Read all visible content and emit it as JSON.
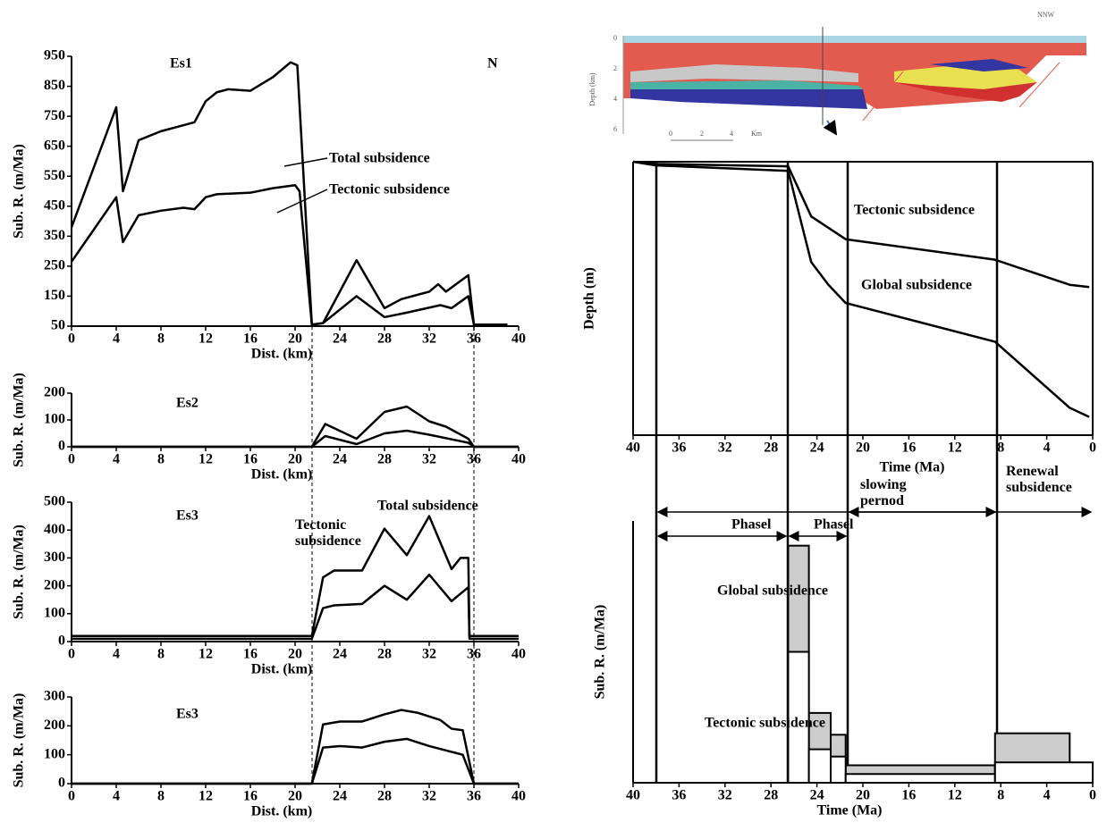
{
  "cross_section": {
    "direction": "NNW",
    "y_label": "Depth (km)",
    "depth_ticks": [
      0,
      2,
      4,
      6
    ],
    "scale_ticks": [
      0,
      2,
      4
    ],
    "scale_unit": "Km"
  },
  "chart_data": [
    {
      "type": "line",
      "annotations": [
        "Es1",
        "N"
      ],
      "x_label": "Dist. (km)",
      "y_label": "Sub. R. (m/Ma)",
      "xlim": [
        0,
        40
      ],
      "xticks": [
        0,
        4,
        8,
        12,
        16,
        20,
        24,
        28,
        32,
        36,
        40
      ],
      "ylim": [
        50,
        950
      ],
      "yticks": [
        50,
        150,
        250,
        350,
        450,
        550,
        650,
        750,
        850,
        950
      ],
      "series": [
        {
          "name": "Total subsidence",
          "color": "#000000",
          "x": [
            0,
            4,
            4.6,
            6,
            8,
            10,
            11,
            12,
            13,
            14,
            16,
            18,
            19.6,
            20.2,
            21.5,
            22.5,
            25.5,
            28,
            29.5,
            31,
            32,
            32.8,
            33.5,
            35.5,
            36,
            39
          ],
          "values": [
            380,
            780,
            500,
            670,
            700,
            720,
            730,
            800,
            830,
            840,
            835,
            880,
            930,
            920,
            55,
            60,
            270,
            110,
            140,
            155,
            165,
            190,
            165,
            220,
            55,
            55
          ]
        },
        {
          "name": "Tectonic subsidence",
          "color": "#000000",
          "x": [
            0,
            4,
            4.6,
            6,
            8,
            10,
            11,
            12,
            13,
            16,
            18,
            20,
            20.4,
            21.5,
            22.5,
            25.5,
            28,
            30,
            33,
            34,
            35.5,
            36,
            39
          ],
          "values": [
            265,
            480,
            330,
            420,
            435,
            445,
            440,
            480,
            490,
            495,
            510,
            520,
            500,
            55,
            60,
            150,
            80,
            95,
            120,
            110,
            150,
            55,
            55
          ]
        }
      ]
    },
    {
      "type": "line",
      "annotations": [
        "Es2"
      ],
      "x_label": "Dist. (km)",
      "y_label": "Sub. R. (m/Ma)",
      "xlim": [
        0,
        40
      ],
      "xticks": [
        0,
        4,
        8,
        12,
        16,
        20,
        24,
        28,
        32,
        36,
        40
      ],
      "ylim": [
        0,
        200
      ],
      "yticks": [
        0,
        100,
        200
      ],
      "series": [
        {
          "color": "#000000",
          "x": [
            0,
            21.5,
            22.7,
            25.5,
            28,
            30,
            32,
            33.5,
            35.5,
            36,
            40
          ],
          "values": [
            0,
            0,
            85,
            30,
            130,
            150,
            95,
            75,
            30,
            0,
            0
          ]
        },
        {
          "color": "#000000",
          "x": [
            0,
            21.5,
            22.7,
            25.5,
            28,
            30,
            32,
            35.5,
            36,
            40
          ],
          "values": [
            0,
            0,
            40,
            10,
            50,
            60,
            45,
            15,
            0,
            0
          ]
        }
      ]
    },
    {
      "type": "line",
      "annotations": [
        "Es3"
      ],
      "x_label": "Dist. (km)",
      "y_label": "Sub. R. (m/Ma)",
      "xlim": [
        0,
        40
      ],
      "xticks": [
        0,
        4,
        8,
        12,
        16,
        20,
        24,
        28,
        32,
        36,
        40
      ],
      "ylim": [
        0,
        500
      ],
      "yticks": [
        0,
        100,
        200,
        300,
        400,
        500
      ],
      "series": [
        {
          "name": "Total subsidence",
          "color": "#000000",
          "x": [
            0,
            21.5,
            22.5,
            23.5,
            26,
            28,
            30,
            32,
            34,
            34.8,
            35.5,
            35.6,
            40
          ],
          "values": [
            20,
            20,
            230,
            255,
            255,
            405,
            310,
            450,
            260,
            300,
            300,
            20,
            20
          ]
        },
        {
          "name": "Tectonic subsidence",
          "color": "#000000",
          "x": [
            0,
            21.5,
            22.5,
            23.5,
            26,
            28,
            30,
            32,
            34,
            35.5,
            35.6,
            40
          ],
          "values": [
            10,
            10,
            120,
            130,
            135,
            200,
            150,
            240,
            145,
            195,
            10,
            10
          ]
        }
      ]
    },
    {
      "type": "line",
      "annotations": [
        "Es3"
      ],
      "x_label": "Dist. (km)",
      "y_label": "Sub. R. (m/Ma)",
      "xlim": [
        0,
        40
      ],
      "xticks": [
        0,
        4,
        8,
        12,
        16,
        20,
        24,
        28,
        32,
        36,
        40
      ],
      "ylim": [
        0,
        300
      ],
      "yticks": [
        0,
        100,
        200,
        300
      ],
      "series": [
        {
          "color": "#000000",
          "x": [
            0,
            21.5,
            22.5,
            24,
            26,
            28,
            29.5,
            31,
            33,
            34,
            35,
            36,
            40
          ],
          "values": [
            0,
            0,
            205,
            215,
            215,
            240,
            255,
            245,
            220,
            190,
            185,
            0,
            0
          ]
        },
        {
          "color": "#000000",
          "x": [
            0,
            21.5,
            22.5,
            24,
            26,
            28,
            30,
            32,
            34,
            35,
            36,
            40
          ],
          "values": [
            0,
            0,
            125,
            130,
            125,
            145,
            155,
            130,
            110,
            100,
            0,
            0
          ]
        }
      ]
    },
    {
      "type": "line",
      "x_label": "Time (Ma)",
      "y_label": "Depth (m)",
      "y_inverted": true,
      "annotations": [
        "slowing pernod",
        "Renewal subsidence"
      ],
      "xlim": [
        40,
        0
      ],
      "xticks": [
        40,
        36,
        32,
        28,
        24,
        20,
        16,
        12,
        8,
        4,
        0
      ],
      "ylim": [
        0,
        6
      ],
      "series": [
        {
          "name": "Tectonic subsidence",
          "color": "#000000",
          "x": [
            40,
            38,
            26.5,
            24.5,
            21.5,
            8.5,
            2,
            0.3
          ],
          "values": [
            0,
            0.05,
            0.1,
            1.2,
            1.7,
            2.15,
            2.7,
            2.75
          ]
        },
        {
          "name": "Global subsidence",
          "color": "#000000",
          "x": [
            40,
            38,
            26.5,
            24.5,
            23,
            21.5,
            8.5,
            2,
            0.3
          ],
          "values": [
            0,
            0.08,
            0.2,
            2.2,
            2.7,
            3.1,
            3.95,
            5.4,
            5.6
          ]
        }
      ]
    },
    {
      "type": "histogram",
      "x_label": "Time (Ma)",
      "y_label": "Sub. R. (m/Ma)",
      "annotations": [
        "Phasel",
        "Phasel"
      ],
      "xlim": [
        40,
        0
      ],
      "xticks": [
        40,
        36,
        32,
        28,
        24,
        20,
        16,
        12,
        8,
        4,
        0
      ],
      "ylim": [
        0,
        9
      ],
      "series": [
        {
          "name": "Global subsidence",
          "color": "#cccccc",
          "bins": [
            26.5,
            24.7,
            22.8,
            21.5,
            8.5,
            2
          ],
          "values": [
            8.15,
            2.4,
            1.65,
            0.6,
            1.7
          ]
        },
        {
          "name": "Tectonic subsidence",
          "color": "#ffffff",
          "bins": [
            26.5,
            24.7,
            22.8,
            21.5,
            8.5,
            0
          ],
          "values": [
            4.5,
            1.15,
            0.9,
            0.3,
            0.7
          ]
        }
      ]
    }
  ]
}
